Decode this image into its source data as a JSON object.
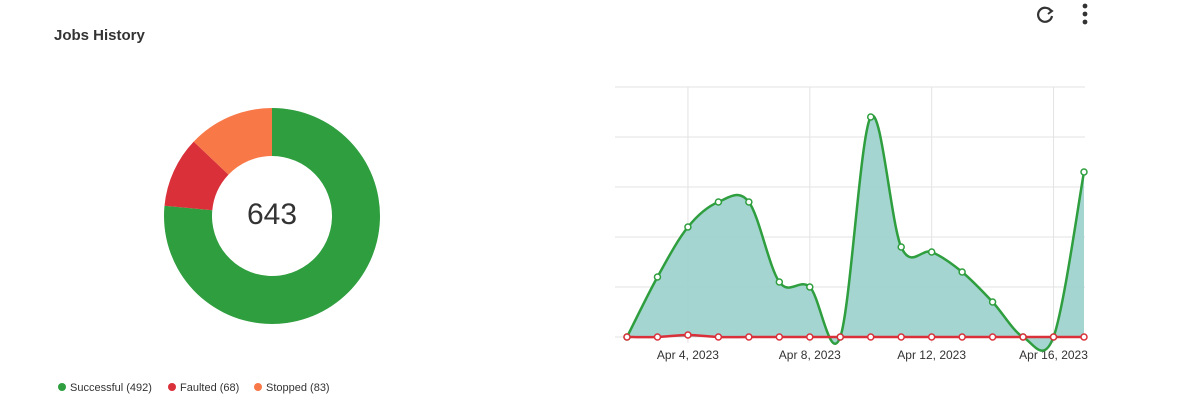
{
  "title": "Jobs History",
  "chart_data": [
    {
      "type": "pie",
      "values": [
        492,
        68,
        83
      ],
      "value_labels": [
        "Successful (492)",
        "Faulted (68)",
        "Stopped (83)"
      ],
      "colors": [
        "#2e9e3e",
        "#d9303a",
        "#f87848"
      ],
      "center_label": 643
    },
    {
      "type": "line",
      "x": [
        "2023-04-02",
        "2023-04-03",
        "2023-04-04",
        "2023-04-05",
        "2023-04-06",
        "2023-04-07",
        "2023-04-08",
        "2023-04-09",
        "2023-04-10",
        "2023-04-11",
        "2023-04-12",
        "2023-04-13",
        "2023-04-14",
        "2023-04-15",
        "2023-04-16",
        "2023-04-17"
      ],
      "xlim": [
        "2023-04-02",
        "2023-04-17"
      ],
      "xticks": [
        {
          "value": "2023-04-04",
          "label": "Apr 4, 2023"
        },
        {
          "value": "2023-04-08",
          "label": "Apr 8, 2023"
        },
        {
          "value": "2023-04-12",
          "label": "Apr 12, 2023"
        },
        {
          "value": "2023-04-16",
          "label": "Apr 16, 2023"
        }
      ],
      "ylim": [
        0,
        5
      ],
      "yticks": [
        0,
        1,
        2,
        3,
        4,
        5
      ],
      "ytick_labels": false,
      "grid": true,
      "series": [
        {
          "color": "#2e9e3e",
          "fill": "#9fd3cf",
          "values": [
            0,
            1.2,
            2.2,
            2.7,
            2.7,
            1.1,
            1.0,
            0,
            4.4,
            1.8,
            1.7,
            1.3,
            0.7,
            0,
            0,
            3.3
          ]
        },
        {
          "color": "#d9303a",
          "values": [
            0,
            0,
            0.04,
            0,
            0,
            0,
            0,
            0,
            0,
            0,
            0,
            0,
            0,
            0,
            0,
            0
          ]
        }
      ]
    }
  ]
}
